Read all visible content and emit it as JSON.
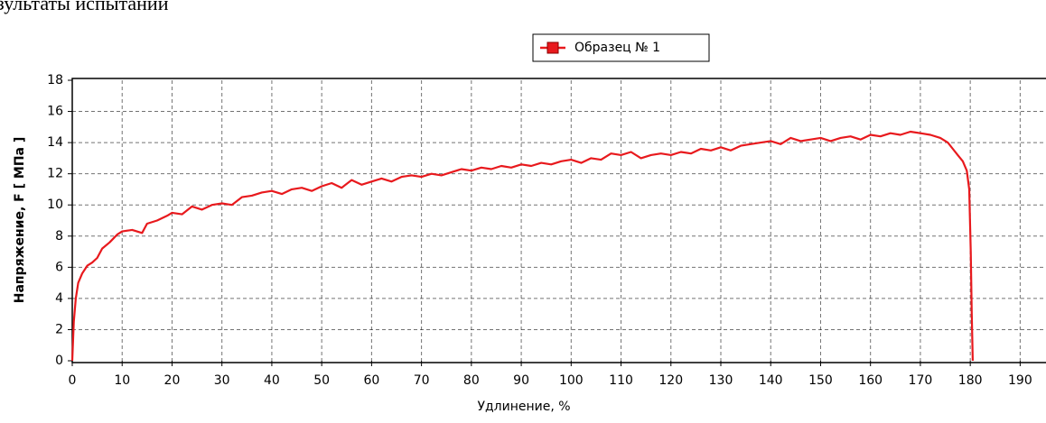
{
  "page_title": "зультаты испытаний",
  "chart_data": {
    "type": "line",
    "xlabel": "Удлинение, %",
    "ylabel": "Напряжение, F [  МПа ]",
    "legend": "upper center",
    "grid": true,
    "xlim": [
      0,
      195
    ],
    "ylim": [
      0,
      18
    ],
    "xticks": [
      0,
      10,
      20,
      30,
      40,
      50,
      60,
      70,
      80,
      90,
      100,
      110,
      120,
      130,
      140,
      150,
      160,
      170,
      180,
      190
    ],
    "yticks": [
      0,
      2,
      4,
      6,
      8,
      10,
      12,
      14,
      16,
      18
    ],
    "series": [
      {
        "name": "Образец № 1",
        "color": "#e8191d",
        "x": [
          0,
          0.3,
          0.7,
          1.2,
          2,
          3,
          4,
          5,
          6,
          7.5,
          9,
          10,
          12,
          14,
          15,
          17,
          19,
          20,
          22,
          24,
          26,
          28,
          30,
          32,
          34,
          36,
          38,
          40,
          42,
          44,
          46,
          48,
          50,
          52,
          54,
          56,
          58,
          60,
          62,
          64,
          66,
          68,
          70,
          72,
          74,
          76,
          78,
          80,
          82,
          84,
          86,
          88,
          90,
          92,
          94,
          96,
          98,
          100,
          102,
          104,
          106,
          108,
          110,
          112,
          114,
          116,
          118,
          120,
          122,
          124,
          126,
          128,
          130,
          132,
          134,
          136,
          138,
          140,
          142,
          144,
          146,
          148,
          150,
          152,
          154,
          156,
          158,
          160,
          162,
          164,
          166,
          168,
          170,
          172,
          174,
          175.5,
          176.5,
          177.5,
          178.5,
          179.3,
          179.8,
          180.1,
          180.3,
          180.5
        ],
        "values": [
          0,
          2.5,
          4,
          5,
          5.6,
          6.1,
          6.3,
          6.6,
          7.2,
          7.6,
          8.1,
          8.3,
          8.4,
          8.2,
          8.8,
          9.0,
          9.3,
          9.5,
          9.4,
          9.9,
          9.7,
          10.0,
          10.1,
          10.0,
          10.5,
          10.6,
          10.8,
          10.9,
          10.7,
          11.0,
          11.1,
          10.9,
          11.2,
          11.4,
          11.1,
          11.6,
          11.3,
          11.5,
          11.7,
          11.5,
          11.8,
          11.9,
          11.8,
          12.0,
          11.9,
          12.1,
          12.3,
          12.2,
          12.4,
          12.3,
          12.5,
          12.4,
          12.6,
          12.5,
          12.7,
          12.6,
          12.8,
          12.9,
          12.7,
          13.0,
          12.9,
          13.3,
          13.2,
          13.4,
          13.0,
          13.2,
          13.3,
          13.2,
          13.4,
          13.3,
          13.6,
          13.5,
          13.7,
          13.5,
          13.8,
          13.9,
          14.0,
          14.1,
          13.9,
          14.3,
          14.1,
          14.2,
          14.3,
          14.1,
          14.3,
          14.4,
          14.2,
          14.5,
          14.4,
          14.6,
          14.5,
          14.7,
          14.6,
          14.5,
          14.3,
          14.0,
          13.6,
          13.2,
          12.8,
          12.2,
          11,
          7,
          3,
          0
        ]
      }
    ]
  }
}
